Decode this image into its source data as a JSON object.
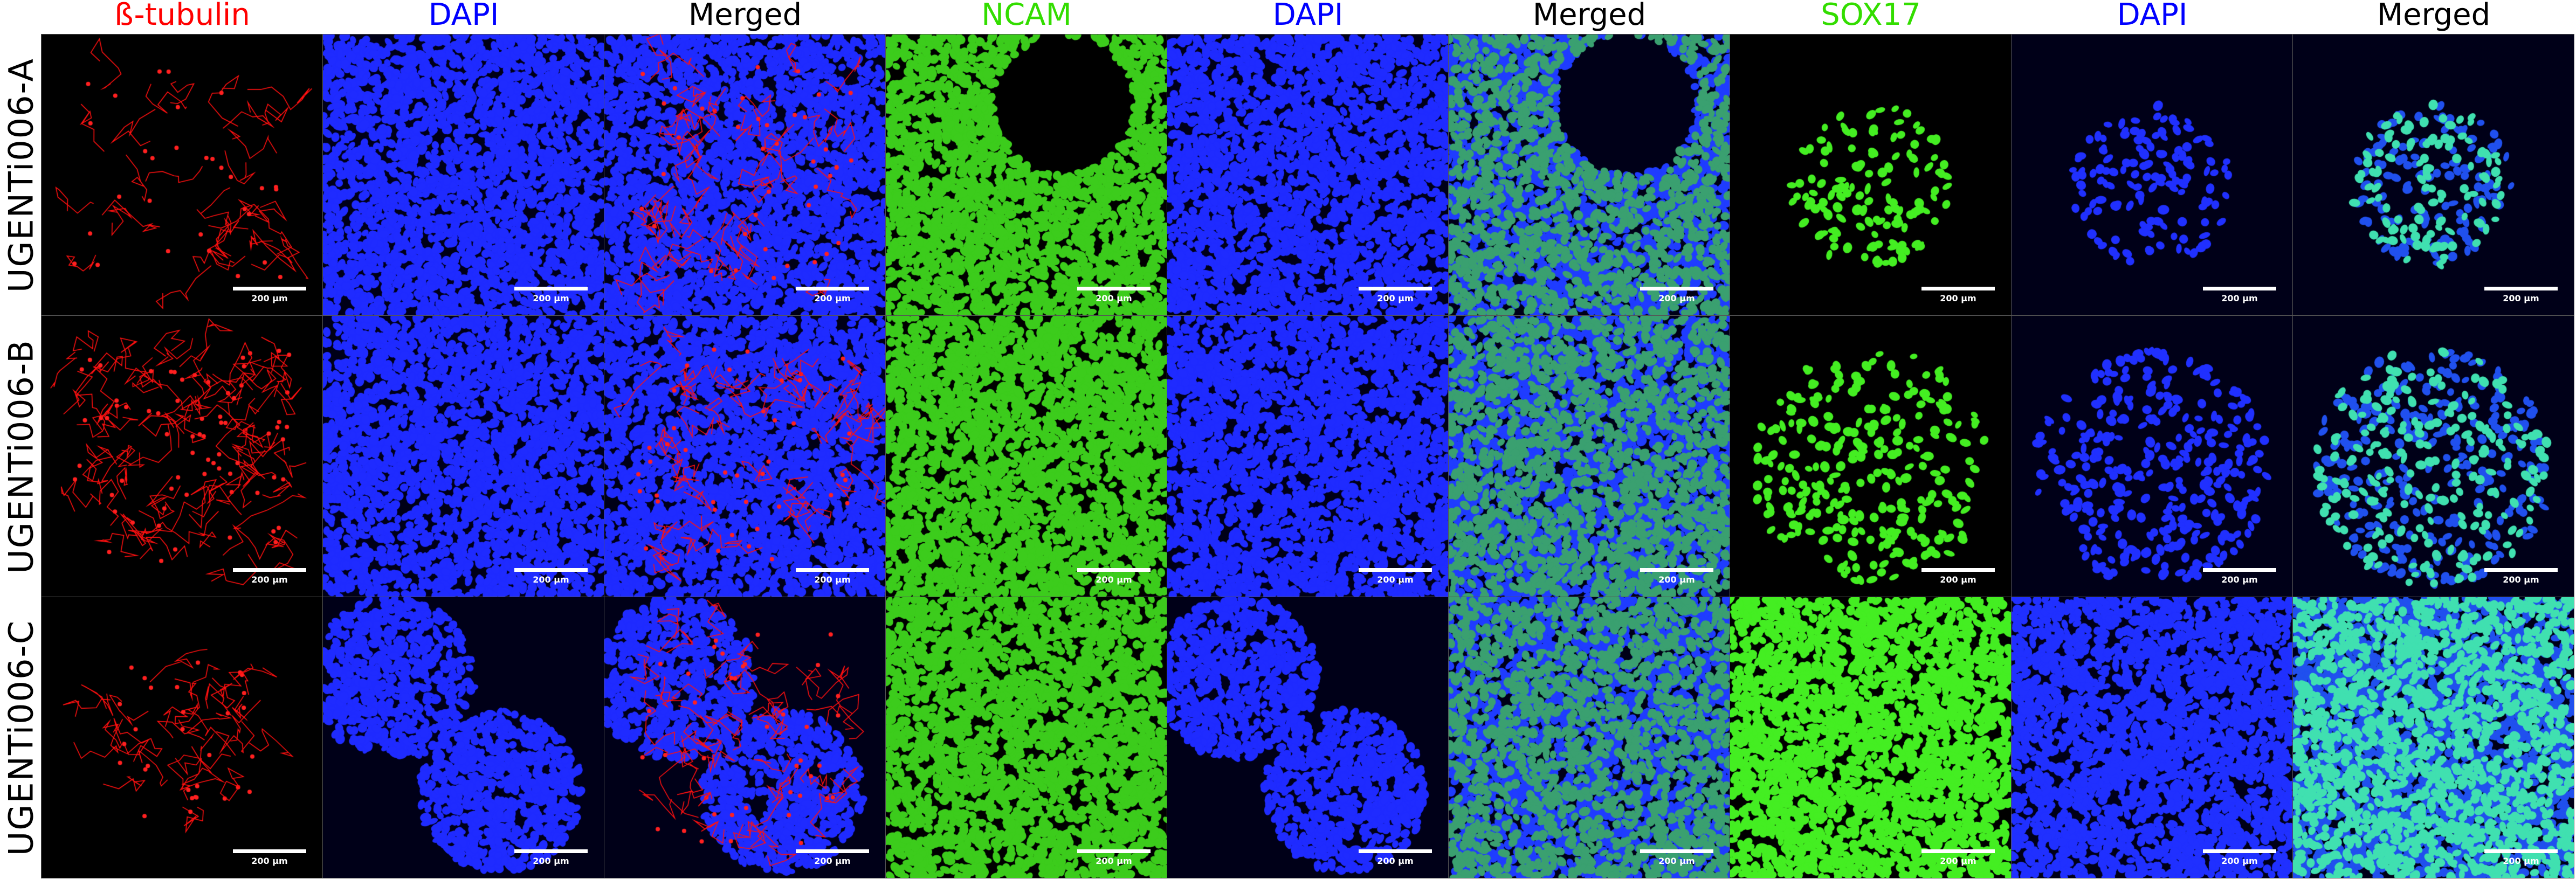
{
  "figure": {
    "columns": [
      {
        "label": "ß-tubulin",
        "color": "#ff0000",
        "channel": "red"
      },
      {
        "label": "DAPI",
        "color": "#0000ff",
        "channel": "blue"
      },
      {
        "label": "Merged",
        "color": "#000000",
        "channel": "merged-red"
      },
      {
        "label": "NCAM",
        "color": "#33dd00",
        "channel": "green"
      },
      {
        "label": "DAPI",
        "color": "#0000ff",
        "channel": "blue"
      },
      {
        "label": "Merged",
        "color": "#000000",
        "channel": "merged-green"
      },
      {
        "label": "SOX17",
        "color": "#33dd00",
        "channel": "green-sparse"
      },
      {
        "label": "DAPI",
        "color": "#0000ff",
        "channel": "blue-sparse"
      },
      {
        "label": "Merged",
        "color": "#000000",
        "channel": "merged-sparse"
      }
    ],
    "rows": [
      {
        "label": "UGENTi006-A"
      },
      {
        "label": "UGENTi006-B"
      },
      {
        "label": "UGENTi006-C"
      }
    ],
    "scale_bar": "200 µm"
  }
}
